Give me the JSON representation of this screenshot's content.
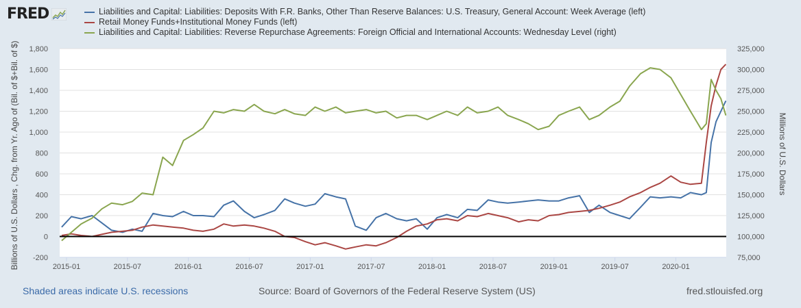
{
  "header": {
    "logo_text": "FRED",
    "logo_icon": "line-chart-icon"
  },
  "legend": [
    {
      "label": "Liabilities and Capital: Liabilities: Deposits With F.R. Banks, Other Than Reserve Balances: U.S. Treasury, General Account: Week Average (left)",
      "color": "#4572a7"
    },
    {
      "label": "Retail Money Funds+Institutional Money Funds (left)",
      "color": "#aa4643"
    },
    {
      "label": "Liabilities and Capital: Liabilities: Reverse Repurchase Agreements: Foreign Official and International Accounts: Wednesday Level (right)",
      "color": "#89a54e"
    }
  ],
  "footer": {
    "recession_note": "Shaded areas indicate U.S. recessions",
    "source": "Source: Board of Governors of the Federal Reserve System (US)",
    "site": "fred.stlouisfed.org"
  },
  "chart_data": {
    "type": "line",
    "title": "",
    "xlabel": "",
    "ylabel": "Billions of U.S. Dollars , Chg. from Yr. Ago of (Bil. of $+Bil. of $)",
    "ylabel_right": "Millions of U.S. Dollars",
    "ylim": [
      -200,
      1800
    ],
    "ylim_right": [
      75000,
      325000
    ],
    "yticks": [
      "-200",
      "0",
      "200",
      "400",
      "600",
      "800",
      "1,000",
      "1,200",
      "1,400",
      "1,600",
      "1,800"
    ],
    "yticks_values": [
      -200,
      0,
      200,
      400,
      600,
      800,
      1000,
      1200,
      1400,
      1600,
      1800
    ],
    "yticks_right": [
      "75,000",
      "100,000",
      "125,000",
      "150,000",
      "175,000",
      "200,000",
      "225,000",
      "250,000",
      "275,000",
      "300,000",
      "325,000"
    ],
    "yticks_right_values": [
      75000,
      100000,
      125000,
      150000,
      175000,
      200000,
      225000,
      250000,
      275000,
      300000,
      325000
    ],
    "xticks": [
      "2015-01",
      "2015-07",
      "2016-01",
      "2016-07",
      "2017-01",
      "2017-07",
      "2018-01",
      "2018-07",
      "2019-01",
      "2019-07",
      "2020-01"
    ],
    "xticks_values": [
      2015.0,
      2015.5,
      2016.0,
      2016.5,
      2017.0,
      2017.5,
      2018.0,
      2018.5,
      2019.0,
      2019.5,
      2020.0
    ],
    "xlim": [
      2014.94,
      2020.41
    ],
    "grid": true,
    "zero_line": 0,
    "legend_position": "top",
    "x": [
      2014.96,
      2015.04,
      2015.12,
      2015.21,
      2015.29,
      2015.37,
      2015.46,
      2015.54,
      2015.62,
      2015.71,
      2015.79,
      2015.87,
      2015.96,
      2016.04,
      2016.12,
      2016.21,
      2016.29,
      2016.37,
      2016.46,
      2016.54,
      2016.62,
      2016.71,
      2016.79,
      2016.87,
      2016.96,
      2017.04,
      2017.12,
      2017.21,
      2017.29,
      2017.37,
      2017.46,
      2017.54,
      2017.62,
      2017.71,
      2017.79,
      2017.87,
      2017.96,
      2018.04,
      2018.12,
      2018.21,
      2018.29,
      2018.37,
      2018.46,
      2018.54,
      2018.62,
      2018.71,
      2018.79,
      2018.87,
      2018.96,
      2019.04,
      2019.12,
      2019.21,
      2019.29,
      2019.37,
      2019.46,
      2019.54,
      2019.62,
      2019.71,
      2019.79,
      2019.87,
      2019.96,
      2020.04,
      2020.12,
      2020.21,
      2020.25,
      2020.29,
      2020.33,
      2020.37,
      2020.41
    ],
    "series": [
      {
        "name": "Liabilities and Capital: Liabilities: Deposits With F.R. Banks, Other Than Reserve Balances: U.S. Treasury, General Account: Week Average (left)",
        "axis": "left",
        "color": "#4572a7",
        "values": [
          90,
          190,
          170,
          200,
          130,
          60,
          40,
          70,
          50,
          220,
          200,
          190,
          240,
          200,
          200,
          190,
          300,
          340,
          240,
          180,
          210,
          250,
          360,
          320,
          290,
          310,
          410,
          380,
          360,
          100,
          60,
          180,
          220,
          170,
          150,
          170,
          70,
          180,
          210,
          180,
          260,
          250,
          350,
          330,
          320,
          330,
          340,
          350,
          340,
          340,
          370,
          390,
          230,
          300,
          230,
          200,
          170,
          280,
          380,
          370,
          380,
          370,
          420,
          400,
          420,
          900,
          1100,
          1200,
          1300
        ]
      },
      {
        "name": "Retail Money Funds+Institutional Money Funds (left)",
        "axis": "left",
        "color": "#aa4643",
        "values": [
          10,
          25,
          10,
          0,
          20,
          40,
          50,
          60,
          90,
          110,
          100,
          90,
          80,
          60,
          50,
          70,
          120,
          100,
          110,
          100,
          80,
          50,
          0,
          -10,
          -50,
          -80,
          -60,
          -90,
          -120,
          -100,
          -80,
          -90,
          -60,
          -10,
          50,
          100,
          120,
          160,
          170,
          150,
          200,
          190,
          220,
          200,
          180,
          140,
          160,
          150,
          200,
          210,
          230,
          240,
          250,
          270,
          300,
          330,
          380,
          420,
          470,
          510,
          580,
          520,
          500,
          510,
          900,
          1250,
          1450,
          1600,
          1650
        ]
      },
      {
        "name": "Liabilities and Capital: Liabilities: Reverse Repurchase Agreements: Foreign Official and International Accounts: Wednesday Level (right)",
        "axis": "right",
        "color": "#89a54e",
        "values": [
          95000,
          105000,
          115000,
          122000,
          133000,
          140000,
          138000,
          142000,
          152000,
          150000,
          195000,
          185000,
          215000,
          222000,
          230000,
          250000,
          248000,
          252000,
          250000,
          258000,
          250000,
          247000,
          252000,
          247000,
          245000,
          255000,
          250000,
          255000,
          248000,
          250000,
          252000,
          248000,
          250000,
          242000,
          245000,
          245000,
          240000,
          245000,
          250000,
          245000,
          255000,
          248000,
          250000,
          255000,
          245000,
          240000,
          235000,
          228000,
          232000,
          245000,
          250000,
          255000,
          240000,
          245000,
          255000,
          262000,
          280000,
          295000,
          302000,
          300000,
          290000,
          270000,
          250000,
          228000,
          235000,
          288000,
          275000,
          265000,
          245000
        ]
      }
    ]
  }
}
